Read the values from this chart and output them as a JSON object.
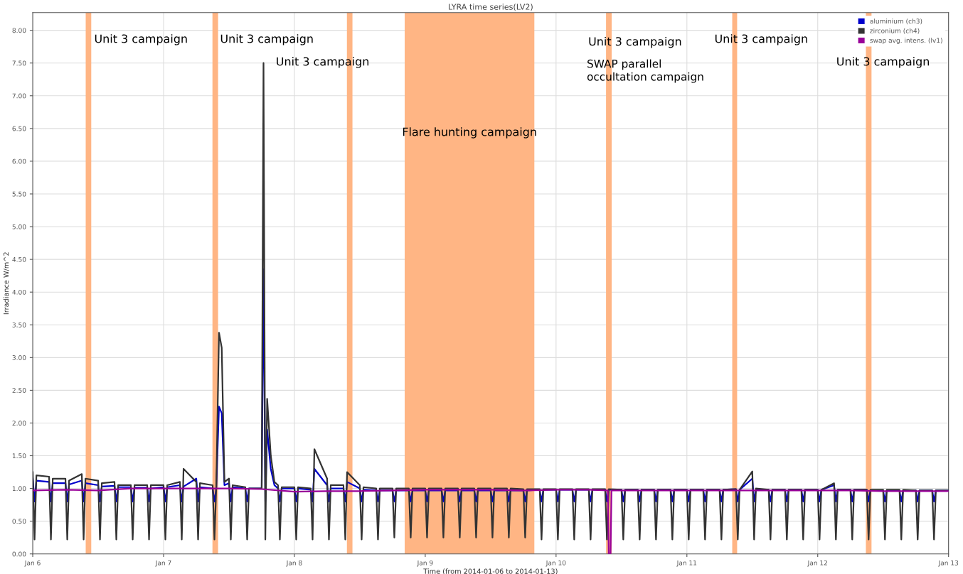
{
  "chart_data": {
    "type": "line",
    "title": "LYRA time series(LV2)",
    "xlabel": "Time (from 2014-01-06 to 2014-01-13)",
    "ylabel": "Irradiance W/m^2",
    "x": [
      "2014-01-06T00:00",
      "2014-01-06T00:20",
      "2014-01-06T00:40",
      "2014-01-06T03:00",
      "2014-01-06T03:20",
      "2014-01-06T03:40",
      "2014-01-06T06:00",
      "2014-01-06T06:20",
      "2014-01-06T06:40",
      "2014-01-06T09:00",
      "2014-01-06T09:20",
      "2014-01-06T09:40",
      "2014-01-06T12:00",
      "2014-01-06T12:20",
      "2014-01-06T12:40",
      "2014-01-06T15:00",
      "2014-01-06T15:20",
      "2014-01-06T15:40",
      "2014-01-06T18:00",
      "2014-01-06T18:20",
      "2014-01-06T18:40",
      "2014-01-06T21:00",
      "2014-01-06T21:20",
      "2014-01-06T21:40",
      "2014-01-07T00:00",
      "2014-01-07T00:20",
      "2014-01-07T00:40",
      "2014-01-07T03:00",
      "2014-01-07T03:20",
      "2014-01-07T03:40",
      "2014-01-07T06:00",
      "2014-01-07T06:20",
      "2014-01-07T06:40",
      "2014-01-07T09:00",
      "2014-01-07T09:20",
      "2014-01-07T09:40",
      "2014-01-07T10:10",
      "2014-01-07T10:40",
      "2014-01-07T11:10",
      "2014-01-07T12:00",
      "2014-01-07T12:20",
      "2014-01-07T12:40",
      "2014-01-07T15:00",
      "2014-01-07T15:20",
      "2014-01-07T15:40",
      "2014-01-07T18:00",
      "2014-01-07T18:20",
      "2014-01-07T18:40",
      "2014-01-07T19:00",
      "2014-01-07T19:40",
      "2014-01-07T20:20",
      "2014-01-07T21:00",
      "2014-01-07T21:20",
      "2014-01-07T21:40",
      "2014-01-08T00:00",
      "2014-01-08T00:20",
      "2014-01-08T00:40",
      "2014-01-08T03:00",
      "2014-01-08T03:20",
      "2014-01-08T03:40",
      "2014-01-08T06:00",
      "2014-01-08T06:20",
      "2014-01-08T06:40",
      "2014-01-08T09:00",
      "2014-01-08T09:20",
      "2014-01-08T09:40",
      "2014-01-08T12:00",
      "2014-01-08T12:20",
      "2014-01-08T12:40",
      "2014-01-08T15:00",
      "2014-01-08T15:20",
      "2014-01-08T15:40",
      "2014-01-08T18:00",
      "2014-01-08T18:20",
      "2014-01-08T18:40",
      "2014-01-08T21:00",
      "2014-01-08T21:20",
      "2014-01-08T21:40",
      "2014-01-09T00:00",
      "2014-01-09T00:20",
      "2014-01-09T00:40",
      "2014-01-09T03:00",
      "2014-01-09T03:20",
      "2014-01-09T03:40",
      "2014-01-09T06:00",
      "2014-01-09T06:20",
      "2014-01-09T06:40",
      "2014-01-09T09:00",
      "2014-01-09T09:20",
      "2014-01-09T09:40",
      "2014-01-09T12:00",
      "2014-01-09T12:20",
      "2014-01-09T12:40",
      "2014-01-09T15:00",
      "2014-01-09T15:20",
      "2014-01-09T15:40",
      "2014-01-09T18:00",
      "2014-01-09T18:20",
      "2014-01-09T18:40",
      "2014-01-09T21:00",
      "2014-01-09T21:20",
      "2014-01-09T21:40",
      "2014-01-10T00:00",
      "2014-01-10T00:20",
      "2014-01-10T00:40",
      "2014-01-10T03:00",
      "2014-01-10T03:20",
      "2014-01-10T03:40",
      "2014-01-10T06:00",
      "2014-01-10T06:20",
      "2014-01-10T06:40",
      "2014-01-10T09:00",
      "2014-01-10T09:20",
      "2014-01-10T09:40",
      "2014-01-10T12:00",
      "2014-01-10T12:20",
      "2014-01-10T12:40",
      "2014-01-10T15:00",
      "2014-01-10T15:20",
      "2014-01-10T15:40",
      "2014-01-10T18:00",
      "2014-01-10T18:20",
      "2014-01-10T18:40",
      "2014-01-10T21:00",
      "2014-01-10T21:20",
      "2014-01-10T21:40",
      "2014-01-11T00:00",
      "2014-01-11T00:20",
      "2014-01-11T00:40",
      "2014-01-11T03:00",
      "2014-01-11T03:20",
      "2014-01-11T03:40",
      "2014-01-11T06:00",
      "2014-01-11T06:20",
      "2014-01-11T06:40",
      "2014-01-11T09:00",
      "2014-01-11T09:20",
      "2014-01-11T09:40",
      "2014-01-11T12:00",
      "2014-01-11T12:20",
      "2014-01-11T12:40",
      "2014-01-11T15:00",
      "2014-01-11T15:20",
      "2014-01-11T15:40",
      "2014-01-11T18:00",
      "2014-01-11T18:20",
      "2014-01-11T18:40",
      "2014-01-11T21:00",
      "2014-01-11T21:20",
      "2014-01-11T21:40",
      "2014-01-12T00:00",
      "2014-01-12T00:20",
      "2014-01-12T00:40",
      "2014-01-12T03:00",
      "2014-01-12T03:20",
      "2014-01-12T03:40",
      "2014-01-12T06:00",
      "2014-01-12T06:20",
      "2014-01-12T06:40",
      "2014-01-12T09:00",
      "2014-01-12T09:20",
      "2014-01-12T09:40",
      "2014-01-12T12:00",
      "2014-01-12T12:20",
      "2014-01-12T12:40",
      "2014-01-12T15:00",
      "2014-01-12T15:20",
      "2014-01-12T15:40",
      "2014-01-12T18:00",
      "2014-01-12T18:20",
      "2014-01-12T18:40",
      "2014-01-12T21:00",
      "2014-01-12T21:20",
      "2014-01-12T21:40",
      "2014-01-13T00:00"
    ],
    "series": [
      {
        "name": "aluminium (ch3)",
        "color": "#0000cc",
        "values": [
          1.15,
          0.8,
          1.12,
          1.1,
          0.8,
          1.08,
          1.08,
          0.8,
          1.06,
          1.12,
          0.8,
          1.08,
          1.05,
          0.8,
          1.03,
          1.04,
          0.8,
          1.02,
          1.02,
          0.8,
          1.01,
          1.01,
          0.8,
          1.0,
          1.02,
          0.8,
          1.02,
          1.05,
          0.8,
          1.03,
          1.15,
          0.8,
          1.02,
          1.0,
          0.8,
          1.0,
          2.25,
          2.15,
          1.05,
          1.08,
          0.8,
          1.02,
          1.0,
          0.8,
          1.0,
          1.0,
          4.35,
          0.8,
          1.9,
          1.3,
          1.05,
          1.0,
          0.8,
          1.0,
          1.0,
          0.8,
          1.0,
          0.98,
          0.8,
          1.3,
          1.05,
          0.8,
          1.0,
          1.0,
          0.8,
          1.1,
          1.0,
          0.8,
          0.98,
          0.97,
          0.8,
          0.97,
          0.97,
          0.8,
          0.97,
          0.97,
          0.8,
          0.97,
          0.97,
          0.8,
          0.97,
          0.97,
          0.8,
          0.97,
          0.97,
          0.8,
          0.97,
          0.97,
          0.8,
          0.97,
          0.97,
          0.8,
          0.97,
          0.97,
          0.8,
          0.97,
          0.97,
          0.8,
          0.97,
          0.98,
          0.8,
          0.98,
          0.98,
          0.8,
          0.98,
          0.98,
          0.8,
          0.98,
          0.98,
          0.8,
          0.98,
          0.98,
          0.8,
          0.98,
          0.98,
          0.8,
          0.98,
          0.98,
          0.8,
          0.98,
          0.98,
          0.8,
          0.98,
          0.98,
          0.8,
          0.98,
          0.98,
          0.8,
          0.98,
          0.98,
          0.8,
          0.98,
          0.98,
          0.8,
          0.98,
          0.99,
          0.8,
          0.98,
          1.15,
          0.8,
          0.98,
          0.98,
          0.8,
          0.98,
          0.98,
          0.8,
          0.98,
          0.98,
          0.8,
          0.98,
          0.98,
          0.8,
          0.98,
          1.05,
          0.8,
          0.98,
          0.98,
          0.8,
          0.98,
          0.98,
          0.8,
          0.97,
          0.97,
          0.8,
          0.97,
          0.97,
          0.8,
          0.97,
          0.97,
          0.8,
          0.97,
          0.97,
          0.8,
          0.97,
          0.97
        ]
      },
      {
        "name": "zirconium (ch4)",
        "color": "#333333",
        "values": [
          1.25,
          0.22,
          1.2,
          1.18,
          0.22,
          1.15,
          1.15,
          0.22,
          1.12,
          1.22,
          0.22,
          1.15,
          1.12,
          0.22,
          1.08,
          1.1,
          0.22,
          1.05,
          1.05,
          0.22,
          1.05,
          1.05,
          0.22,
          1.05,
          1.05,
          0.22,
          1.05,
          1.1,
          0.22,
          1.3,
          1.1,
          0.22,
          1.08,
          1.05,
          0.22,
          1.02,
          3.38,
          3.15,
          1.1,
          1.15,
          0.22,
          1.05,
          1.02,
          0.22,
          1.0,
          1.0,
          7.5,
          0.22,
          2.37,
          1.5,
          1.1,
          1.05,
          0.22,
          1.02,
          1.02,
          0.22,
          1.02,
          1.0,
          0.22,
          1.6,
          1.15,
          0.22,
          1.05,
          1.05,
          0.22,
          1.25,
          1.05,
          0.22,
          1.02,
          1.0,
          0.22,
          1.0,
          1.0,
          0.25,
          1.0,
          1.0,
          0.25,
          1.0,
          1.0,
          0.25,
          1.0,
          1.0,
          0.25,
          1.0,
          1.0,
          0.25,
          1.0,
          1.0,
          0.25,
          1.0,
          1.0,
          0.25,
          1.0,
          1.0,
          0.25,
          1.0,
          0.99,
          0.25,
          0.99,
          0.99,
          0.22,
          0.99,
          0.99,
          0.22,
          0.99,
          0.99,
          0.22,
          0.99,
          0.99,
          0.22,
          0.99,
          0.99,
          0.22,
          0.99,
          0.98,
          0.22,
          0.98,
          0.98,
          0.22,
          0.98,
          0.98,
          0.22,
          0.98,
          0.98,
          0.22,
          0.98,
          0.98,
          0.22,
          0.98,
          0.98,
          0.22,
          0.98,
          0.98,
          0.22,
          0.98,
          0.99,
          0.22,
          0.98,
          1.26,
          0.22,
          1.0,
          0.98,
          0.22,
          0.98,
          0.98,
          0.22,
          0.98,
          0.98,
          0.22,
          0.98,
          0.98,
          0.22,
          0.98,
          1.08,
          0.22,
          0.98,
          0.98,
          0.22,
          0.98,
          0.98,
          0.22,
          0.98,
          0.98,
          0.22,
          0.98,
          0.98,
          0.22,
          0.98,
          0.97,
          0.22,
          0.97,
          0.97,
          0.22,
          0.97,
          0.97
        ]
      },
      {
        "name": "swap avg. intens. (lv1)",
        "color": "#990099",
        "x": [
          "2014-01-06T00:00",
          "2014-01-06T06:00",
          "2014-01-06T12:00",
          "2014-01-06T18:00",
          "2014-01-07T00:00",
          "2014-01-07T06:00",
          "2014-01-07T12:00",
          "2014-01-07T18:00",
          "2014-01-08T00:00",
          "2014-01-08T06:00",
          "2014-01-08T12:00",
          "2014-01-08T18:00",
          "2014-01-09T00:00",
          "2014-01-09T06:00",
          "2014-01-09T12:00",
          "2014-01-09T18:00",
          "2014-01-10T00:00",
          "2014-01-10T06:00",
          "2014-01-10T09:30",
          "2014-01-10T09:40",
          "2014-01-10T10:00",
          "2014-01-10T10:10",
          "2014-01-10T12:00",
          "2014-01-10T18:00",
          "2014-01-11T00:00",
          "2014-01-11T06:00",
          "2014-01-11T12:00",
          "2014-01-11T18:00",
          "2014-01-12T00:00",
          "2014-01-12T06:00",
          "2014-01-12T12:00",
          "2014-01-12T18:00",
          "2014-01-13T00:00"
        ],
        "values": [
          0.97,
          0.98,
          0.97,
          1.0,
          1.0,
          1.0,
          1.0,
          0.99,
          0.95,
          0.96,
          0.96,
          0.97,
          0.98,
          0.98,
          0.98,
          0.97,
          0.98,
          0.98,
          0.97,
          0.0,
          0.0,
          0.97,
          0.97,
          0.97,
          0.97,
          0.97,
          0.97,
          0.97,
          0.97,
          0.97,
          0.96,
          0.96,
          0.96
        ]
      }
    ],
    "bands": [
      {
        "axis": "x",
        "from": "2014-01-06T09:43",
        "to": "2014-01-06T10:44",
        "label": "Unit 3 campaign",
        "color": "#ffb584"
      },
      {
        "axis": "x",
        "from": "2014-01-07T08:58",
        "to": "2014-01-07T10:00",
        "label": "Unit 3 campaign",
        "color": "#ffb584"
      },
      {
        "axis": "x",
        "from": "2014-01-08T09:38",
        "to": "2014-01-08T10:39",
        "label": "Unit 3 campaign",
        "color": "#ffb584"
      },
      {
        "axis": "x",
        "from": "2014-01-08T20:14",
        "to": "2014-01-09T20:01",
        "label": "Flare hunting campaign",
        "color": "#ffb584"
      },
      {
        "axis": "x",
        "from": "2014-01-10T09:10",
        "to": "2014-01-10T10:12",
        "label": "Unit 3 campaign",
        "color": "#ffb584"
      },
      {
        "axis": "x",
        "from": "2014-01-11T08:19",
        "to": "2014-01-11T09:13",
        "label": "Unit 3 campaign",
        "color": "#ffb584"
      },
      {
        "axis": "x",
        "from": "2014-01-12T08:50",
        "to": "2014-01-12T09:52",
        "label": "Unit 3 campaign",
        "color": "#ffb584"
      }
    ],
    "annotations": [
      "SWAP parallel\noccultation campaign"
    ],
    "xlim": [
      "2014-01-06",
      "2014-01-13"
    ],
    "xticks": [
      {
        "value": "2014-01-06",
        "label": "Jan 6"
      },
      {
        "value": "2014-01-07",
        "label": "Jan 7"
      },
      {
        "value": "2014-01-08",
        "label": "Jan 8"
      },
      {
        "value": "2014-01-09",
        "label": "Jan 9"
      },
      {
        "value": "2014-01-10",
        "label": "Jan 10"
      },
      {
        "value": "2014-01-11",
        "label": "Jan 11"
      },
      {
        "value": "2014-01-12",
        "label": "Jan 12"
      },
      {
        "value": "2014-01-13",
        "label": "Jan 13"
      }
    ],
    "ylim": [
      0,
      8.27
    ],
    "yticks": [
      {
        "value": 0,
        "label": "0.00"
      },
      {
        "value": 0.5,
        "label": "0.50"
      },
      {
        "value": 1,
        "label": "1.00"
      },
      {
        "value": 1.5,
        "label": "1.50"
      },
      {
        "value": 2,
        "label": "2.00"
      },
      {
        "value": 2.5,
        "label": "2.50"
      },
      {
        "value": 3,
        "label": "3.00"
      },
      {
        "value": 3.5,
        "label": "3.50"
      },
      {
        "value": 4,
        "label": "4.00"
      },
      {
        "value": 4.5,
        "label": "4.50"
      },
      {
        "value": 5,
        "label": "5.00"
      },
      {
        "value": 5.5,
        "label": "5.50"
      },
      {
        "value": 6,
        "label": "6.00"
      },
      {
        "value": 6.5,
        "label": "6.50"
      },
      {
        "value": 7,
        "label": "7.00"
      },
      {
        "value": 7.5,
        "label": "7.50"
      },
      {
        "value": 8,
        "label": "8.00"
      }
    ],
    "grid": true,
    "legend": "top right",
    "marker": "none",
    "line_style": "solid"
  }
}
